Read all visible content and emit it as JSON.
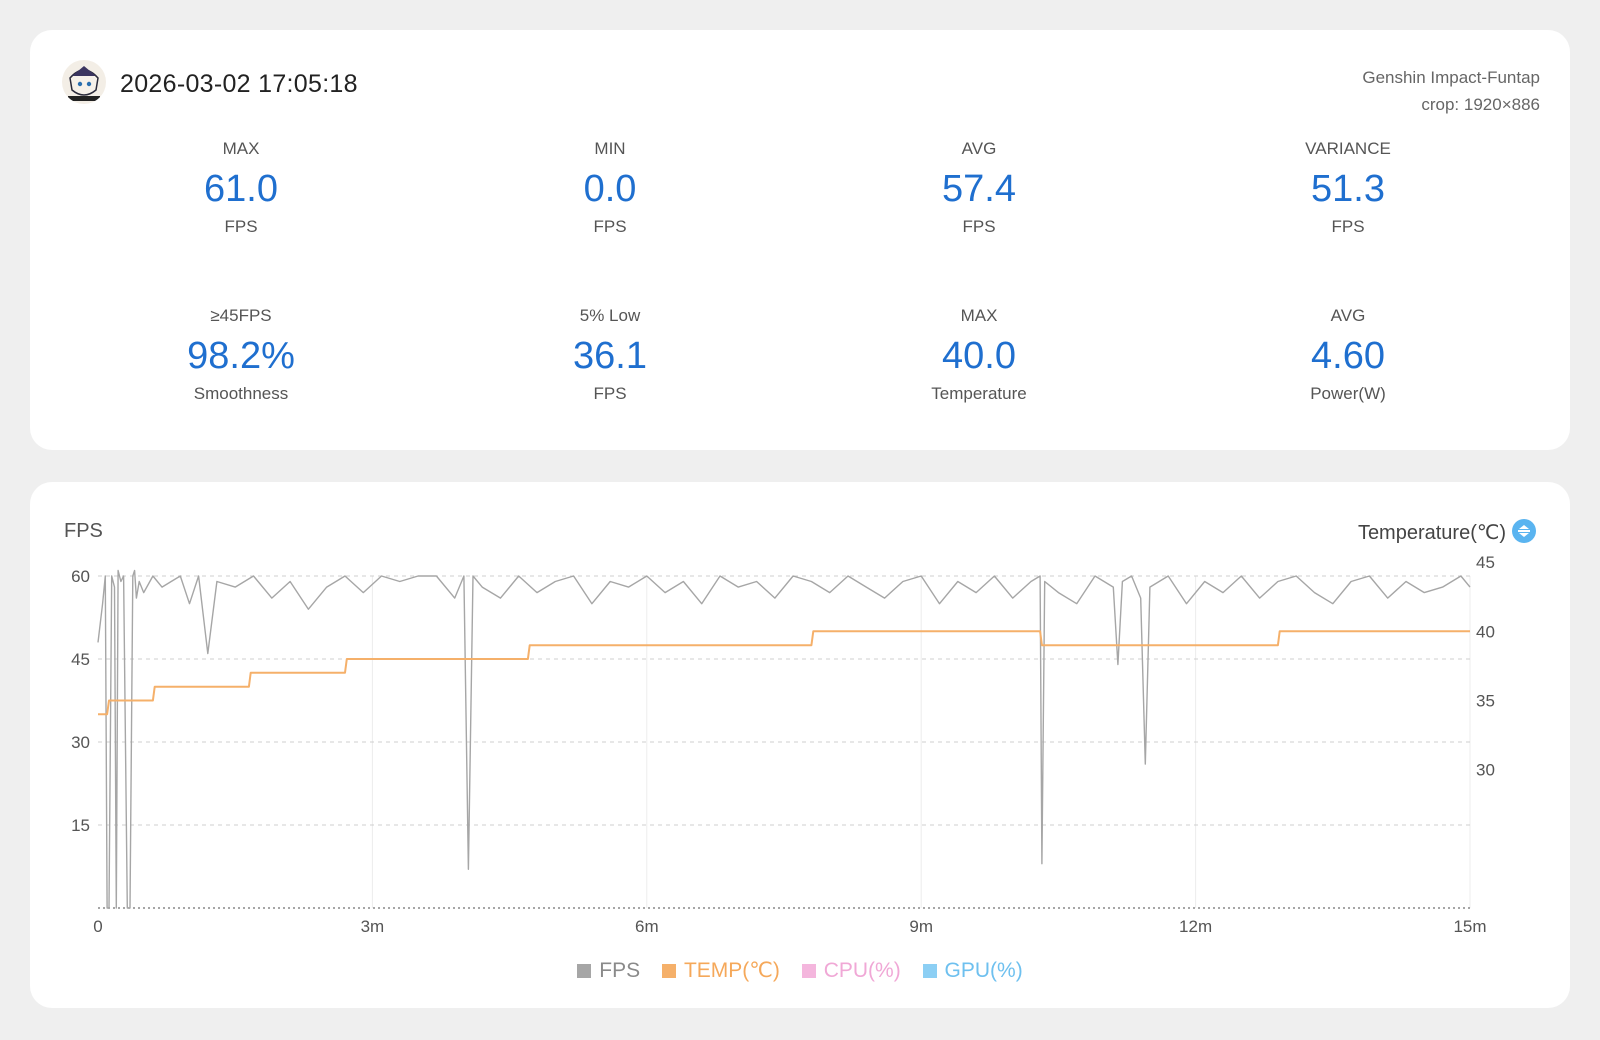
{
  "header": {
    "timestamp": "2026-03-02 17:05:18",
    "app_name": "Genshin Impact-Funtap",
    "crop": "crop: 1920×886"
  },
  "stats": [
    {
      "label": "MAX",
      "value": "61.0",
      "unit": "FPS"
    },
    {
      "label": "MIN",
      "value": "0.0",
      "unit": "FPS"
    },
    {
      "label": "AVG",
      "value": "57.4",
      "unit": "FPS"
    },
    {
      "label": "VARIANCE",
      "value": "51.3",
      "unit": "FPS"
    },
    {
      "label": "≥45FPS",
      "value": "98.2%",
      "unit": "Smoothness"
    },
    {
      "label": "5% Low",
      "value": "36.1",
      "unit": "FPS"
    },
    {
      "label": "MAX",
      "value": "40.0",
      "unit": "Temperature"
    },
    {
      "label": "AVG",
      "value": "4.60",
      "unit": "Power(W)"
    }
  ],
  "colors": {
    "accent_value": "#1f6fcf",
    "fps": "#a6a6a6",
    "temp": "#f5b06a",
    "cpu": "#f4b6dd",
    "gpu": "#8ccff4",
    "swap_icon": "#5ab4f0"
  },
  "chart": {
    "left_title": "FPS",
    "right_title": "Temperature(℃)",
    "swap_icon": "swap-vertical-icon",
    "legend": [
      {
        "label": "FPS",
        "color": "#a6a6a6"
      },
      {
        "label": "TEMP(℃)",
        "color": "#f5b06a"
      },
      {
        "label": "CPU(%)",
        "color": "#f4b6dd"
      },
      {
        "label": "GPU(%)",
        "color": "#8ccff4"
      }
    ]
  },
  "chart_data": {
    "type": "line",
    "x_unit": "minutes",
    "xlim": [
      0,
      15
    ],
    "x_ticks": [
      0,
      3,
      6,
      9,
      12,
      15
    ],
    "x_tick_labels": [
      "0",
      "3m",
      "6m",
      "9m",
      "12m",
      "15m"
    ],
    "y_left_lim": [
      0,
      60
    ],
    "y_left_ticks": [
      15,
      30,
      45,
      60
    ],
    "y_right_lim": [
      20,
      44
    ],
    "y_right_ticks": [
      30,
      35,
      40,
      45
    ],
    "series": [
      {
        "name": "FPS",
        "axis": "left",
        "x": [
          0,
          0.05,
          0.08,
          0.1,
          0.12,
          0.15,
          0.18,
          0.2,
          0.22,
          0.25,
          0.28,
          0.32,
          0.35,
          0.38,
          0.4,
          0.42,
          0.45,
          0.5,
          0.6,
          0.7,
          0.8,
          0.9,
          1.0,
          1.1,
          1.2,
          1.3,
          1.5,
          1.7,
          1.9,
          2.1,
          2.3,
          2.5,
          2.7,
          2.9,
          3.1,
          3.3,
          3.5,
          3.7,
          3.9,
          4.0,
          4.05,
          4.1,
          4.2,
          4.4,
          4.6,
          4.8,
          5.0,
          5.2,
          5.4,
          5.6,
          5.8,
          6.0,
          6.2,
          6.4,
          6.6,
          6.8,
          7.0,
          7.2,
          7.4,
          7.6,
          7.8,
          8.0,
          8.2,
          8.4,
          8.6,
          8.8,
          9.0,
          9.2,
          9.4,
          9.6,
          9.8,
          10.0,
          10.2,
          10.3,
          10.32,
          10.35,
          10.5,
          10.7,
          10.9,
          11.1,
          11.15,
          11.2,
          11.3,
          11.4,
          11.45,
          11.5,
          11.7,
          11.9,
          12.1,
          12.3,
          12.5,
          12.7,
          12.9,
          13.1,
          13.3,
          13.5,
          13.7,
          13.9,
          14.1,
          14.3,
          14.5,
          14.7,
          14.9,
          15.0
        ],
        "values": [
          48,
          55,
          60,
          0,
          0,
          60,
          58,
          0,
          61,
          59,
          60,
          0,
          0,
          60,
          61,
          56,
          59,
          57,
          60,
          58,
          59,
          60,
          55,
          60,
          46,
          59,
          58,
          60,
          56,
          59,
          54,
          58,
          60,
          57,
          60,
          59,
          60,
          60,
          56,
          60,
          7,
          60,
          58,
          56,
          60,
          57,
          59,
          60,
          55,
          59,
          58,
          60,
          57,
          59,
          55,
          60,
          58,
          59,
          56,
          60,
          59,
          57,
          60,
          58,
          56,
          59,
          60,
          55,
          59,
          57,
          60,
          56,
          59,
          60,
          8,
          59,
          57,
          55,
          60,
          58,
          44,
          59,
          60,
          56,
          26,
          58,
          60,
          55,
          59,
          57,
          60,
          56,
          59,
          60,
          57,
          55,
          59,
          60,
          56,
          59,
          57,
          58,
          60,
          58
        ]
      },
      {
        "name": "TEMP(℃)",
        "axis": "right",
        "x": [
          0,
          0.1,
          0.12,
          0.6,
          0.62,
          1.65,
          1.67,
          2.7,
          2.72,
          4.7,
          4.72,
          7.8,
          7.82,
          10.3,
          10.32,
          12.9,
          12.92,
          15.0
        ],
        "values": [
          34,
          34,
          35,
          35,
          36,
          36,
          37,
          37,
          38,
          38,
          39,
          39,
          40,
          40,
          39,
          39,
          40,
          40
        ]
      },
      {
        "name": "CPU(%)",
        "axis": "right",
        "x": [],
        "values": []
      },
      {
        "name": "GPU(%)",
        "axis": "right",
        "x": [],
        "values": []
      }
    ]
  }
}
